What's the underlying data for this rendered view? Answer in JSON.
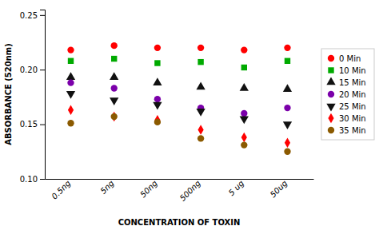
{
  "chart_data": {
    "type": "scatter",
    "xlabel": "CONCENTRATION OF TOXIN",
    "ylabel": "ABSORBANCE (520nm)",
    "categories": [
      "0.5ng",
      "5ng",
      "50ng",
      "500ng",
      "5 ug",
      "50ug"
    ],
    "series": [
      {
        "name": "0 Min",
        "color": "#FF0000",
        "marker": "circle",
        "values": [
          0.218,
          0.222,
          0.22,
          0.22,
          0.218,
          0.22
        ]
      },
      {
        "name": "10 Min",
        "color": "#00AA00",
        "marker": "square",
        "values": [
          0.208,
          0.21,
          0.206,
          0.207,
          0.202,
          0.208
        ]
      },
      {
        "name": "15 Min",
        "color": "#111111",
        "marker": "triangle-up",
        "values": [
          0.193,
          0.193,
          0.188,
          0.184,
          0.183,
          0.182
        ]
      },
      {
        "name": "20 Min",
        "color": "#7B00AA",
        "marker": "circle",
        "values": [
          0.188,
          0.183,
          0.173,
          0.165,
          0.16,
          0.165
        ]
      },
      {
        "name": "25 Min",
        "color": "#111111",
        "marker": "triangle-down",
        "values": [
          0.178,
          0.172,
          0.168,
          0.162,
          0.155,
          0.15
        ]
      },
      {
        "name": "30 Min",
        "color": "#FF0000",
        "marker": "diamond",
        "values": [
          0.163,
          0.157,
          0.154,
          0.145,
          0.138,
          0.133
        ]
      },
      {
        "name": "35 Min",
        "color": "#8B5A00",
        "marker": "circle",
        "values": [
          0.151,
          0.157,
          0.152,
          0.137,
          0.131,
          0.125
        ]
      }
    ],
    "ylim": [
      0.1,
      0.255
    ],
    "yticks": [
      {
        "value": 0.1,
        "label": "0.10"
      },
      0.15,
      {
        "value": 0.2,
        "label": "0.20"
      },
      0.25
    ],
    "grid": false,
    "legend": "right"
  }
}
